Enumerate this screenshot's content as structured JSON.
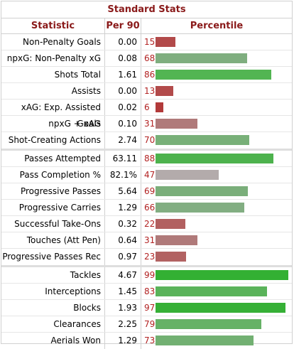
{
  "table": {
    "title": "Standard Stats",
    "headers": {
      "statistic": "Statistic",
      "per90": "Per 90",
      "percentile": "Percentile"
    },
    "colors": {
      "high": "#3db03d",
      "mid": "#7fae7f",
      "neutral": "#b0a8a8",
      "low_mid": "#b07a7a",
      "low": "#b24040"
    },
    "groups": [
      {
        "rows": [
          {
            "statistic": "Non-Penalty Goals",
            "per90": "0.00",
            "percentile": "15",
            "percentile_value": 15,
            "bar_color": "#b24a4a"
          },
          {
            "statistic": "npxG: Non-Penalty xG",
            "per90": "0.08",
            "percentile": "68",
            "percentile_value": 68,
            "bar_color": "#7fae7f"
          },
          {
            "statistic": "Shots Total",
            "per90": "1.61",
            "percentile": "86",
            "percentile_value": 86,
            "bar_color": "#52b552"
          },
          {
            "statistic": "Assists",
            "per90": "0.00",
            "percentile": "13",
            "percentile_value": 13,
            "bar_color": "#b24a4a"
          },
          {
            "statistic": "xAG: Exp. Assisted Goals",
            "per90": "0.02",
            "percentile": "6",
            "percentile_value": 6,
            "bar_color": "#b23a3a"
          },
          {
            "statistic": "npxG + xAG",
            "per90": "0.10",
            "percentile": "31",
            "percentile_value": 31,
            "bar_color": "#b07a7a"
          },
          {
            "statistic": "Shot-Creating Actions",
            "per90": "2.74",
            "percentile": "70",
            "percentile_value": 70,
            "bar_color": "#78b078"
          }
        ]
      },
      {
        "rows": [
          {
            "statistic": "Passes Attempted",
            "per90": "63.11",
            "percentile": "88",
            "percentile_value": 88,
            "bar_color": "#4db24d"
          },
          {
            "statistic": "Pass Completion %",
            "per90": "82.1%",
            "percentile": "47",
            "percentile_value": 47,
            "bar_color": "#b3abab"
          },
          {
            "statistic": "Progressive Passes",
            "per90": "5.64",
            "percentile": "69",
            "percentile_value": 69,
            "bar_color": "#7aae7a"
          },
          {
            "statistic": "Progressive Carries",
            "per90": "1.29",
            "percentile": "66",
            "percentile_value": 66,
            "bar_color": "#82ae82"
          },
          {
            "statistic": "Successful Take-Ons",
            "per90": "0.32",
            "percentile": "22",
            "percentile_value": 22,
            "bar_color": "#b26060"
          },
          {
            "statistic": "Touches (Att Pen)",
            "per90": "0.64",
            "percentile": "31",
            "percentile_value": 31,
            "bar_color": "#b07a7a"
          },
          {
            "statistic": "Progressive Passes Rec",
            "per90": "0.97",
            "percentile": "23",
            "percentile_value": 23,
            "bar_color": "#b26262"
          }
        ]
      },
      {
        "rows": [
          {
            "statistic": "Tackles",
            "per90": "4.67",
            "percentile": "99",
            "percentile_value": 99,
            "bar_color": "#33b033"
          },
          {
            "statistic": "Interceptions",
            "per90": "1.45",
            "percentile": "83",
            "percentile_value": 83,
            "bar_color": "#5ab35a"
          },
          {
            "statistic": "Blocks",
            "per90": "1.93",
            "percentile": "97",
            "percentile_value": 97,
            "bar_color": "#36b036"
          },
          {
            "statistic": "Clearances",
            "per90": "2.25",
            "percentile": "79",
            "percentile_value": 79,
            "bar_color": "#66b266"
          },
          {
            "statistic": "Aerials Won",
            "per90": "1.29",
            "percentile": "73",
            "percentile_value": 73,
            "bar_color": "#72b072"
          }
        ]
      }
    ]
  }
}
